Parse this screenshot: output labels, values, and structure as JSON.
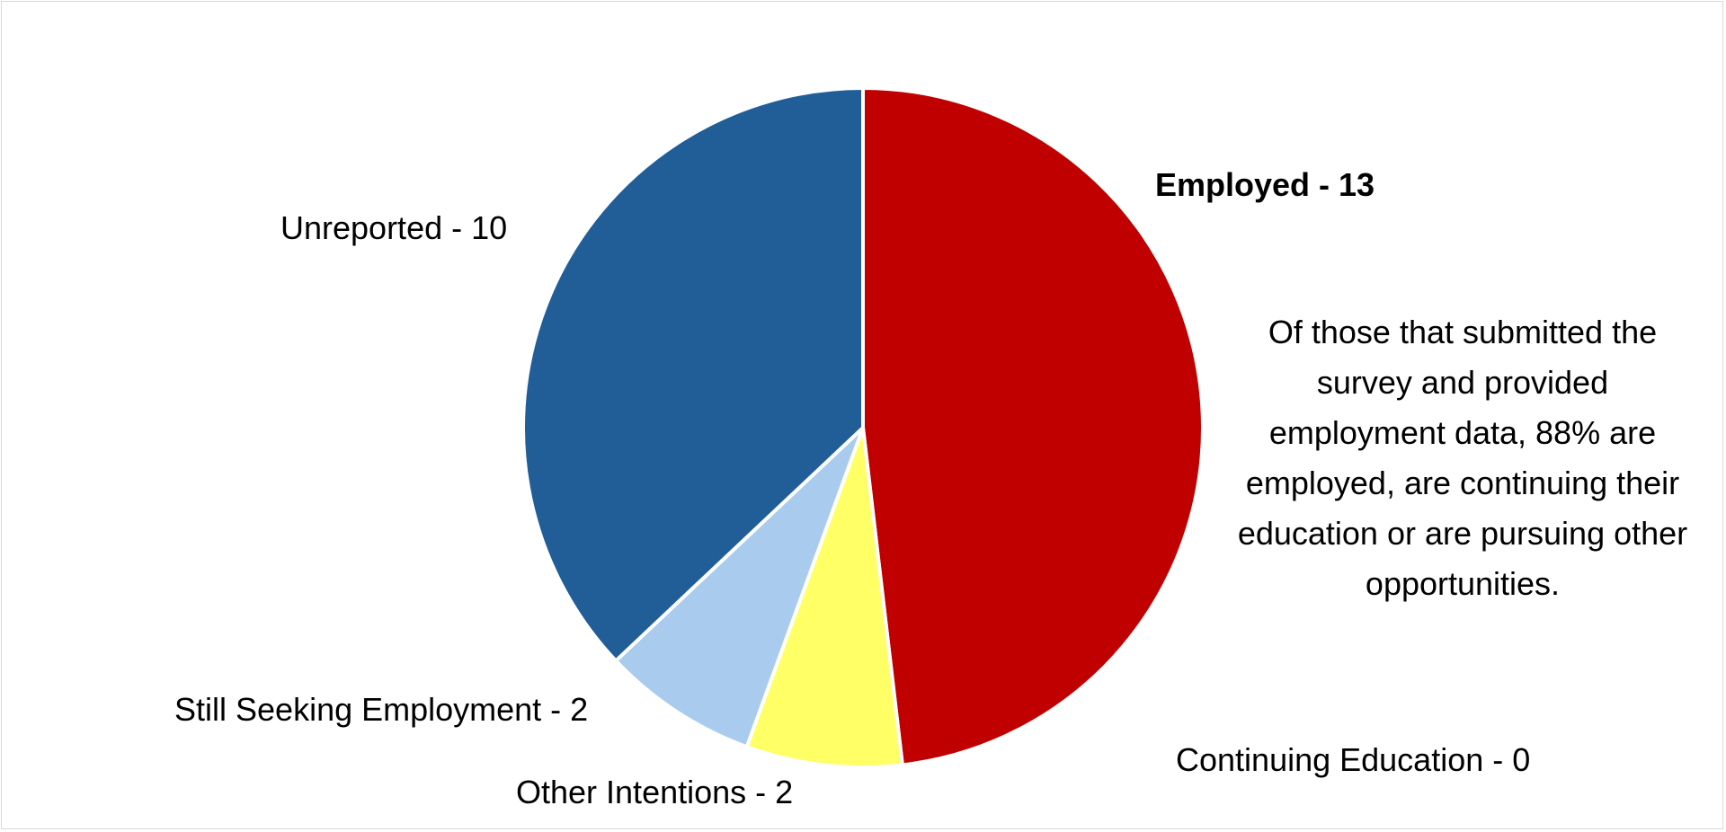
{
  "chart_data": {
    "type": "pie",
    "slices": [
      {
        "name": "Employed",
        "value": 13,
        "label": "Employed - 13",
        "color": "#C00000",
        "bold": true
      },
      {
        "name": "Continuing Education",
        "value": 0,
        "label": "Continuing Education - 0",
        "color": "#FFC000",
        "bold": false
      },
      {
        "name": "Other Intentions",
        "value": 2,
        "label": "Other Intentions - 2",
        "color": "#FFFF66",
        "bold": false
      },
      {
        "name": "Still Seeking Employment",
        "value": 2,
        "label": "Still Seeking Employment - 2",
        "color": "#A9CCEE",
        "bold": false
      },
      {
        "name": "Unreported",
        "value": 10,
        "label": "Unreported - 10",
        "color": "#215E97",
        "bold": false
      }
    ],
    "start_angle_deg": 0,
    "direction": "clockwise",
    "annotation": "Of those that submitted the survey and provided employment data, 88% are employed, are continuing their education or are pursuing other opportunities."
  }
}
